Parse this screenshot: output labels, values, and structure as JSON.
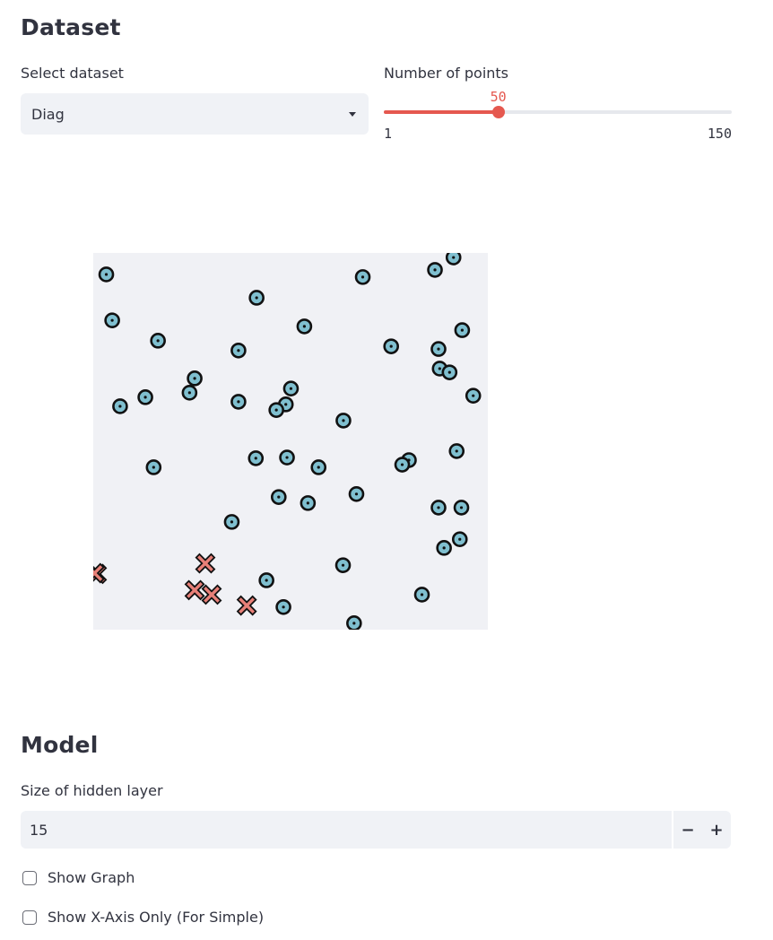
{
  "dataset": {
    "title": "Dataset",
    "select_label": "Select dataset",
    "select_value": "Diag",
    "points_label": "Number of points",
    "points_value": 50,
    "points_value_text": "50",
    "points_min": 1,
    "points_min_text": "1",
    "points_max": 150,
    "points_max_text": "150"
  },
  "colors": {
    "accent": "#E5584F",
    "class_circle": "#7FBFCF",
    "class_cross": "#E88078",
    "plot_bg": "#F0F1F5"
  },
  "chart_data": {
    "type": "scatter",
    "title": "",
    "xlabel": "",
    "ylabel": "",
    "xlim": [
      0,
      1
    ],
    "ylim": [
      0,
      1
    ],
    "grid": false,
    "series": [
      {
        "marker": "circle",
        "color": "#7FBFCF",
        "points": [
          [
            0.033,
            0.943
          ],
          [
            0.683,
            0.936
          ],
          [
            0.913,
            0.988
          ],
          [
            0.866,
            0.955
          ],
          [
            0.414,
            0.881
          ],
          [
            0.048,
            0.821
          ],
          [
            0.535,
            0.805
          ],
          [
            0.935,
            0.795
          ],
          [
            0.164,
            0.767
          ],
          [
            0.368,
            0.741
          ],
          [
            0.755,
            0.752
          ],
          [
            0.875,
            0.745
          ],
          [
            0.878,
            0.693
          ],
          [
            0.903,
            0.683
          ],
          [
            0.257,
            0.667
          ],
          [
            0.244,
            0.629
          ],
          [
            0.501,
            0.64
          ],
          [
            0.132,
            0.617
          ],
          [
            0.368,
            0.605
          ],
          [
            0.068,
            0.593
          ],
          [
            0.488,
            0.598
          ],
          [
            0.464,
            0.583
          ],
          [
            0.963,
            0.621
          ],
          [
            0.634,
            0.555
          ],
          [
            0.921,
            0.474
          ],
          [
            0.8,
            0.45
          ],
          [
            0.783,
            0.438
          ],
          [
            0.412,
            0.455
          ],
          [
            0.491,
            0.457
          ],
          [
            0.571,
            0.431
          ],
          [
            0.153,
            0.431
          ],
          [
            0.47,
            0.352
          ],
          [
            0.544,
            0.336
          ],
          [
            0.667,
            0.36
          ],
          [
            0.875,
            0.324
          ],
          [
            0.933,
            0.324
          ],
          [
            0.351,
            0.286
          ],
          [
            0.929,
            0.24
          ],
          [
            0.889,
            0.217
          ],
          [
            0.633,
            0.171
          ],
          [
            0.439,
            0.131
          ],
          [
            0.833,
            0.093
          ],
          [
            0.482,
            0.06
          ],
          [
            0.661,
            0.017
          ]
        ]
      },
      {
        "marker": "cross",
        "color": "#E88078",
        "points": [
          [
            0.284,
            0.176
          ],
          [
            0.009,
            0.148
          ],
          [
            0.257,
            0.105
          ],
          [
            0.3,
            0.093
          ],
          [
            0.389,
            0.064
          ],
          [
            0.003,
            0.15
          ]
        ]
      }
    ]
  },
  "model": {
    "title": "Model",
    "hidden_label": "Size of hidden layer",
    "hidden_value": "15",
    "minus": "−",
    "plus": "+",
    "show_graph_label": "Show Graph",
    "show_x_axis_label": "Show X-Axis Only (For Simple)"
  }
}
